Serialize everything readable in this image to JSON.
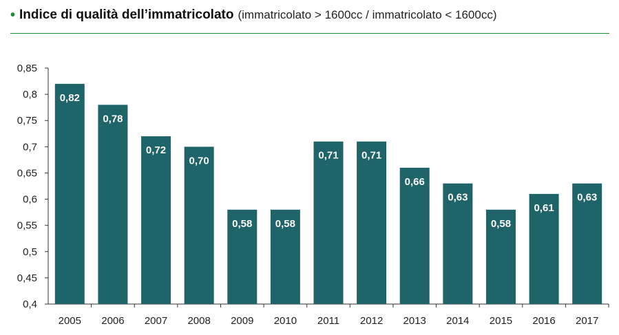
{
  "header": {
    "title": "Indice di qualità dell’immatricolato",
    "subtitle": "(immatricolato > 1600cc / immatricolato < 1600cc)"
  },
  "colors": {
    "bar": "#1f6469",
    "accent": "#1f8a3a",
    "axis": "#333333"
  },
  "chart_data": {
    "type": "bar",
    "title": "Indice di qualità dell’immatricolato",
    "subtitle": "(immatricolato > 1600cc / immatricolato < 1600cc)",
    "categories": [
      "2005",
      "2006",
      "2007",
      "2008",
      "2009",
      "2010",
      "2011",
      "2012",
      "2013",
      "2014",
      "2015",
      "2016",
      "2017"
    ],
    "values": [
      0.82,
      0.78,
      0.72,
      0.7,
      0.58,
      0.58,
      0.71,
      0.71,
      0.66,
      0.63,
      0.58,
      0.61,
      0.63
    ],
    "data_labels": [
      "0,82",
      "0,78",
      "0,72",
      "0,70",
      "0,58",
      "0,58",
      "0,71",
      "0,71",
      "0,66",
      "0,63",
      "0,58",
      "0,61",
      "0,63"
    ],
    "ylim": [
      0.4,
      0.85
    ],
    "yticks": [
      0.4,
      0.45,
      0.5,
      0.55,
      0.6,
      0.65,
      0.7,
      0.75,
      0.8,
      0.85
    ],
    "ytick_labels": [
      "0,4",
      "0,45",
      "0,5",
      "0,55",
      "0,6",
      "0,65",
      "0,7",
      "0,75",
      "0,8",
      "0,85"
    ],
    "xlabel": "",
    "ylabel": "",
    "grid": false,
    "legend": "none"
  }
}
